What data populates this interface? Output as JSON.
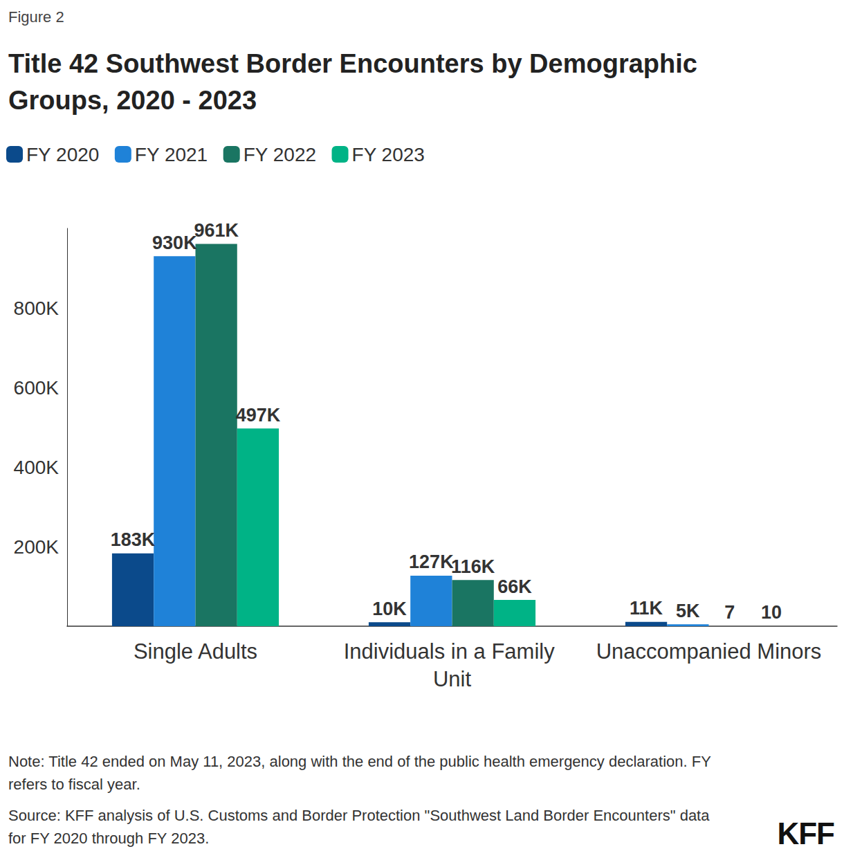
{
  "figure_label": "Figure 2",
  "chart_data": {
    "type": "bar",
    "title": "Title 42 Southwest Border Encounters by Demographic Groups, 2020 - 2023",
    "categories": [
      "Single Adults",
      "Individuals in a Family Unit",
      "Unaccompanied Minors"
    ],
    "series": [
      {
        "name": "FY 2020",
        "color": "#0b4a8b",
        "values": [
          183000,
          10000,
          11000
        ],
        "value_labels": [
          "183K",
          "10K",
          "11K"
        ]
      },
      {
        "name": "FY 2021",
        "color": "#1f82d8",
        "values": [
          930000,
          127000,
          5000
        ],
        "value_labels": [
          "930K",
          "127K",
          "5K"
        ]
      },
      {
        "name": "FY 2022",
        "color": "#1a7562",
        "values": [
          961000,
          116000,
          7
        ],
        "value_labels": [
          "961K",
          "116K",
          "7"
        ]
      },
      {
        "name": "FY 2023",
        "color": "#00b386",
        "values": [
          497000,
          66000,
          10
        ],
        "value_labels": [
          "497K",
          "66K",
          "10"
        ]
      }
    ],
    "ylim": [
      0,
      1000000
    ],
    "yticks": [
      {
        "value": 200000,
        "label": "200K"
      },
      {
        "value": 400000,
        "label": "400K"
      },
      {
        "value": 600000,
        "label": "600K"
      },
      {
        "value": 800000,
        "label": "800K"
      }
    ],
    "grid": false,
    "legend": "top-left",
    "data_labels": true
  },
  "note": "Note: Title 42 ended on May 11, 2023, along with the end of the public health emergency declaration. FY refers to fiscal year.",
  "source": "Source: KFF analysis of U.S. Customs and Border Protection \"Southwest Land Border Encounters\" data for FY 2020 through FY 2023.",
  "logo": "KFF"
}
